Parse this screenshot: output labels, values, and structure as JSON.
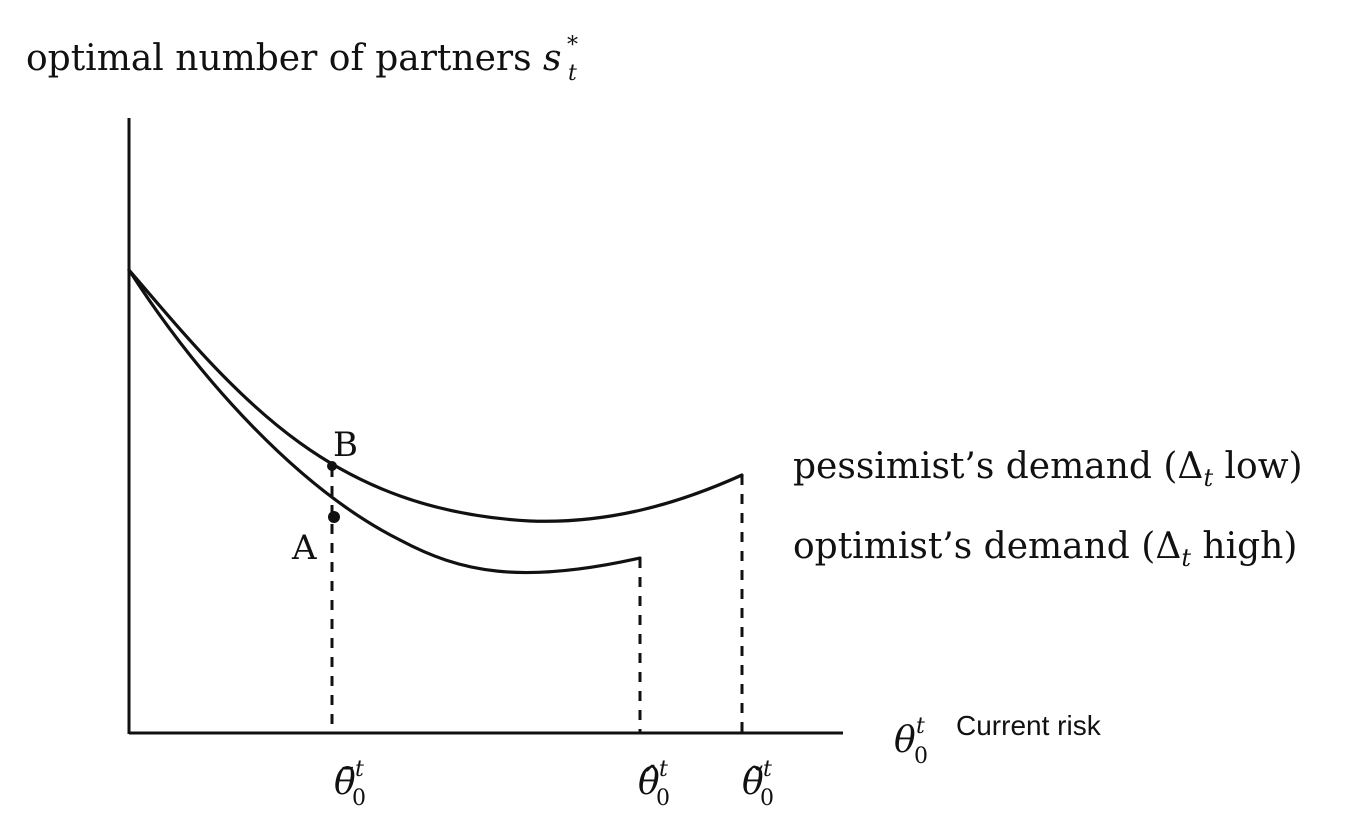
{
  "diagram": {
    "y_axis_label": {
      "text": "optimal number of partners ",
      "symbol": "s",
      "sub": "t",
      "sup": "*"
    },
    "x_axis_label": {
      "symbol": "θ",
      "sub": "0",
      "sup": "t",
      "caption": "Current risk"
    },
    "curves": [
      {
        "name": "pessimist",
        "label": "pessimist’s demand (Δ",
        "label_sub": "t",
        "label_end": " low)"
      },
      {
        "name": "optimist",
        "label": "optimist’s demand (Δ",
        "label_sub": "t",
        "label_end": " high)"
      }
    ],
    "points": [
      {
        "name": "A",
        "label": "A"
      },
      {
        "name": "B",
        "label": "B"
      }
    ],
    "thresholds": [
      {
        "name": "theta-bar",
        "symbol": "θ̄",
        "sub": "0",
        "sup": "t"
      },
      {
        "name": "theta-hat",
        "symbol": "θ̂",
        "sub": "0",
        "sup": "t"
      },
      {
        "name": "theta-tilde",
        "symbol": "θ̃",
        "sub": "0",
        "sup": "t"
      }
    ]
  }
}
